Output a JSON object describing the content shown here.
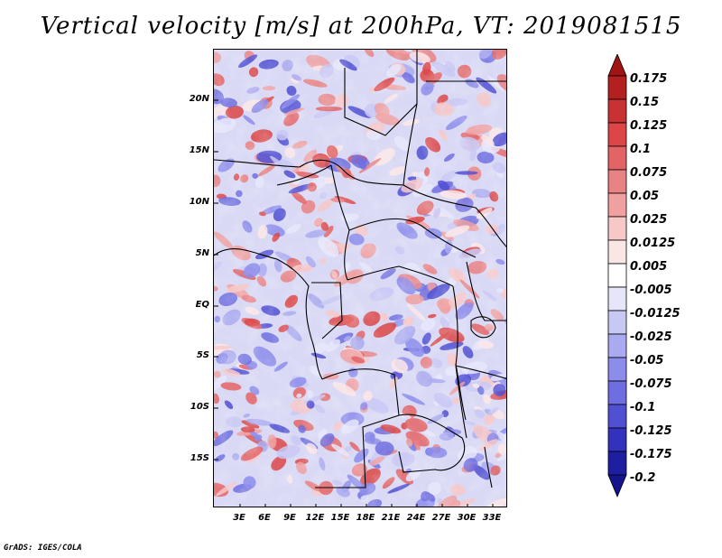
{
  "title": "Vertical velocity [m/s] at 200hPa, VT: 2019081515",
  "map": {
    "lat_labels": [
      "20N",
      "15N",
      "10N",
      "5N",
      "EQ",
      "5S",
      "10S",
      "15S"
    ],
    "lon_labels": [
      "3E",
      "6E",
      "9E",
      "12E",
      "15E",
      "18E",
      "21E",
      "24E",
      "27E",
      "30E",
      "33E"
    ]
  },
  "colorbar": {
    "labels": [
      "0.175",
      "0.15",
      "0.125",
      "0.1",
      "0.075",
      "0.05",
      "0.025",
      "0.0125",
      "0.005",
      "-0.005",
      "-0.0125",
      "-0.025",
      "-0.05",
      "-0.075",
      "-0.1",
      "-0.125",
      "-0.175",
      "-0.2"
    ],
    "colors": [
      "#a01414",
      "#b42020",
      "#c83232",
      "#dc4646",
      "#e36464",
      "#e98282",
      "#f0a0a0",
      "#f7c8c8",
      "#fbe6e6",
      "#ffffff",
      "#e6e6fb",
      "#c8c8f5",
      "#aaaaf0",
      "#8c8ceb",
      "#6e6ee1",
      "#5050d2",
      "#3232be",
      "#1e1ea0",
      "#14148c"
    ]
  },
  "footer": "GrADS: IGES/COLA"
}
